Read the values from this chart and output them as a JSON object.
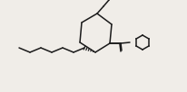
{
  "bg_color": "#f0ede8",
  "line_color": "#1a1a1a",
  "line_width": 1.1,
  "fig_width": 2.06,
  "fig_height": 1.02,
  "dpi": 100
}
